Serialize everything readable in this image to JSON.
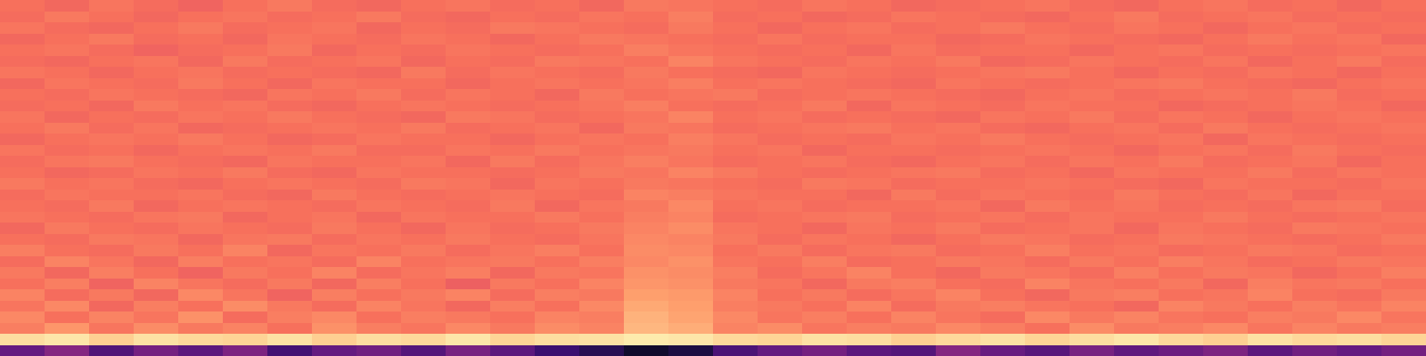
{
  "chart_data": {
    "type": "heatmap",
    "color": "magma",
    "zlim": [
      0,
      100
    ],
    "tick_labels": false,
    "cells": [
      [
        70,
        68,
        71,
        69,
        67,
        70,
        72,
        69,
        68,
        70,
        71,
        69,
        70,
        68,
        72,
        71,
        70,
        69,
        71,
        70,
        68,
        69,
        70,
        71,
        69,
        68,
        70,
        71,
        69,
        70,
        68,
        70
      ],
      [
        69,
        72,
        70,
        68,
        70,
        71,
        69,
        70,
        72,
        69,
        68,
        70,
        69,
        71,
        70,
        73,
        69,
        70,
        68,
        69,
        71,
        70,
        69,
        68,
        70,
        72,
        69,
        70,
        71,
        69,
        70,
        69
      ],
      [
        71,
        69,
        68,
        70,
        72,
        69,
        70,
        71,
        68,
        70,
        69,
        72,
        71,
        70,
        69,
        72,
        70,
        68,
        70,
        71,
        69,
        70,
        72,
        70,
        69,
        71,
        70,
        68,
        70,
        71,
        69,
        70
      ],
      [
        68,
        70,
        72,
        69,
        70,
        68,
        71,
        70,
        69,
        71,
        70,
        68,
        70,
        72,
        71,
        70,
        69,
        71,
        69,
        70,
        70,
        68,
        69,
        71,
        70,
        69,
        68,
        70,
        72,
        70,
        71,
        68
      ],
      [
        70,
        71,
        69,
        67,
        69,
        70,
        72,
        68,
        70,
        69,
        71,
        70,
        69,
        70,
        73,
        71,
        70,
        69,
        70,
        68,
        71,
        69,
        70,
        70,
        68,
        70,
        71,
        69,
        70,
        69,
        70,
        71
      ],
      [
        69,
        68,
        70,
        71,
        68,
        72,
        69,
        70,
        71,
        68,
        70,
        69,
        72,
        71,
        70,
        74,
        71,
        70,
        69,
        71,
        70,
        72,
        68,
        69,
        71,
        70,
        69,
        71,
        68,
        70,
        72,
        69
      ],
      [
        71,
        70,
        68,
        70,
        71,
        69,
        70,
        69,
        68,
        72,
        69,
        71,
        70,
        69,
        72,
        70,
        69,
        68,
        71,
        70,
        69,
        70,
        71,
        72,
        70,
        68,
        70,
        69,
        71,
        70,
        68,
        70
      ],
      [
        68,
        71,
        70,
        69,
        72,
        70,
        68,
        71,
        70,
        70,
        68,
        70,
        71,
        70,
        71,
        73,
        70,
        71,
        70,
        69,
        68,
        71,
        70,
        69,
        70,
        71,
        72,
        70,
        69,
        68,
        70,
        71
      ],
      [
        70,
        69,
        71,
        70,
        69,
        68,
        71,
        70,
        72,
        69,
        71,
        70,
        68,
        72,
        70,
        71,
        72,
        69,
        70,
        71,
        70,
        69,
        68,
        70,
        71,
        69,
        70,
        71,
        70,
        72,
        69,
        70
      ],
      [
        69,
        70,
        68,
        72,
        70,
        71,
        69,
        68,
        70,
        71,
        70,
        69,
        70,
        71,
        73,
        70,
        69,
        70,
        72,
        68,
        71,
        70,
        69,
        71,
        70,
        70,
        68,
        69,
        70,
        71,
        70,
        68
      ],
      [
        71,
        68,
        70,
        69,
        71,
        70,
        72,
        70,
        69,
        68,
        72,
        71,
        69,
        70,
        71,
        74,
        70,
        71,
        69,
        70,
        69,
        68,
        71,
        70,
        72,
        69,
        71,
        70,
        68,
        70,
        71,
        70
      ],
      [
        70,
        72,
        69,
        71,
        68,
        69,
        70,
        71,
        70,
        72,
        69,
        70,
        71,
        68,
        72,
        71,
        69,
        70,
        71,
        72,
        70,
        71,
        69,
        68,
        70,
        71,
        69,
        72,
        70,
        69,
        70,
        71
      ],
      [
        68,
        70,
        71,
        70,
        72,
        70,
        68,
        69,
        71,
        70,
        70,
        68,
        70,
        71,
        70,
        73,
        71,
        69,
        70,
        69,
        71,
        70,
        72,
        70,
        69,
        70,
        71,
        68,
        71,
        70,
        69,
        70
      ],
      [
        71,
        69,
        70,
        68,
        70,
        71,
        70,
        72,
        69,
        69,
        71,
        70,
        72,
        70,
        71,
        72,
        70,
        71,
        68,
        70,
        70,
        69,
        70,
        71,
        70,
        68,
        70,
        71,
        69,
        72,
        70,
        69
      ],
      [
        69,
        71,
        72,
        70,
        69,
        68,
        71,
        70,
        70,
        71,
        68,
        72,
        69,
        71,
        73,
        71,
        69,
        70,
        71,
        69,
        68,
        70,
        71,
        69,
        71,
        70,
        72,
        69,
        70,
        71,
        68,
        70
      ],
      [
        70,
        68,
        69,
        71,
        70,
        72,
        69,
        68,
        71,
        70,
        70,
        69,
        70,
        72,
        71,
        74,
        72,
        70,
        69,
        70,
        71,
        72,
        69,
        70,
        68,
        71,
        70,
        70,
        72,
        69,
        71,
        70
      ],
      [
        72,
        70,
        71,
        69,
        68,
        70,
        71,
        70,
        69,
        72,
        71,
        68,
        71,
        70,
        72,
        71,
        70,
        69,
        72,
        71,
        69,
        70,
        70,
        71,
        70,
        69,
        68,
        71,
        70,
        70,
        69,
        71
      ],
      [
        69,
        71,
        70,
        70,
        71,
        69,
        68,
        72,
        70,
        69,
        70,
        71,
        70,
        69,
        74,
        73,
        71,
        70,
        70,
        68,
        72,
        69,
        71,
        70,
        69,
        72,
        70,
        69,
        71,
        68,
        70,
        70
      ],
      [
        70,
        69,
        72,
        68,
        70,
        71,
        70,
        69,
        71,
        70,
        69,
        72,
        68,
        71,
        72,
        75,
        70,
        71,
        69,
        70,
        70,
        71,
        68,
        72,
        70,
        71,
        69,
        70,
        69,
        71,
        72,
        69
      ],
      [
        71,
        70,
        69,
        71,
        72,
        68,
        70,
        71,
        68,
        71,
        70,
        70,
        72,
        70,
        73,
        74,
        69,
        70,
        71,
        72,
        69,
        70,
        71,
        69,
        71,
        70,
        70,
        72,
        70,
        69,
        70,
        71
      ],
      [
        68,
        72,
        70,
        69,
        71,
        70,
        69,
        72,
        70,
        68,
        71,
        69,
        70,
        72,
        74,
        76,
        71,
        70,
        68,
        71,
        70,
        72,
        69,
        70,
        71,
        68,
        71,
        70,
        69,
        72,
        71,
        70
      ],
      [
        70,
        69,
        72,
        71,
        68,
        71,
        72,
        69,
        71,
        70,
        72,
        70,
        69,
        71,
        75,
        74,
        72,
        69,
        71,
        70,
        68,
        70,
        72,
        71,
        69,
        70,
        72,
        71,
        70,
        69,
        70,
        72
      ],
      [
        73,
        70,
        69,
        72,
        70,
        74,
        68,
        71,
        70,
        72,
        69,
        71,
        73,
        70,
        76,
        75,
        70,
        72,
        69,
        71,
        72,
        69,
        70,
        73,
        70,
        71,
        69,
        70,
        72,
        71,
        69,
        70
      ],
      [
        69,
        74,
        71,
        68,
        73,
        70,
        71,
        69,
        74,
        70,
        71,
        72,
        70,
        73,
        75,
        77,
        71,
        70,
        73,
        69,
        70,
        72,
        71,
        69,
        72,
        70,
        73,
        71,
        69,
        70,
        72,
        71
      ],
      [
        72,
        68,
        73,
        70,
        67,
        72,
        70,
        74,
        69,
        71,
        73,
        68,
        72,
        71,
        77,
        76,
        73,
        69,
        71,
        74,
        70,
        68,
        72,
        71,
        69,
        73,
        70,
        72,
        71,
        68,
        70,
        73
      ],
      [
        70,
        73,
        67,
        74,
        71,
        69,
        72,
        68,
        73,
        70,
        66,
        72,
        70,
        74,
        78,
        77,
        72,
        71,
        68,
        72,
        73,
        70,
        69,
        74,
        71,
        70,
        72,
        68,
        73,
        71,
        72,
        70
      ],
      [
        74,
        69,
        72,
        68,
        75,
        71,
        67,
        73,
        70,
        72,
        74,
        69,
        73,
        72,
        80,
        79,
        74,
        70,
        72,
        69,
        71,
        74,
        70,
        68,
        72,
        73,
        70,
        71,
        74,
        70,
        69,
        72
      ],
      [
        71,
        75,
        68,
        73,
        70,
        76,
        72,
        69,
        74,
        71,
        68,
        73,
        70,
        75,
        82,
        80,
        73,
        72,
        70,
        74,
        69,
        72,
        73,
        71,
        70,
        68,
        74,
        72,
        70,
        73,
        71,
        74
      ],
      [
        75,
        70,
        74,
        71,
        77,
        69,
        73,
        75,
        70,
        73,
        72,
        70,
        74,
        73,
        84,
        81,
        75,
        71,
        73,
        70,
        74,
        71,
        69,
        75,
        72,
        74,
        71,
        70,
        73,
        72,
        75,
        71
      ],
      [
        73,
        78,
        71,
        76,
        72,
        74,
        70,
        77,
        73,
        71,
        75,
        72,
        76,
        74,
        85,
        83,
        74,
        76,
        71,
        73,
        72,
        75,
        73,
        70,
        76,
        72,
        73,
        75,
        71,
        74,
        72,
        73
      ],
      [
        93,
        95,
        90,
        94,
        92,
        91,
        94,
        90,
        93,
        92,
        95,
        91,
        93,
        94,
        96,
        95,
        92,
        91,
        94,
        93,
        90,
        92,
        94,
        91,
        93,
        95,
        92,
        90,
        94,
        92,
        93,
        91
      ],
      [
        30,
        38,
        25,
        34,
        28,
        36,
        22,
        30,
        33,
        26,
        35,
        28,
        20,
        15,
        8,
        12,
        24,
        30,
        34,
        28,
        26,
        38,
        31,
        27,
        35,
        29,
        32,
        36,
        28,
        33,
        30,
        34
      ]
    ]
  }
}
